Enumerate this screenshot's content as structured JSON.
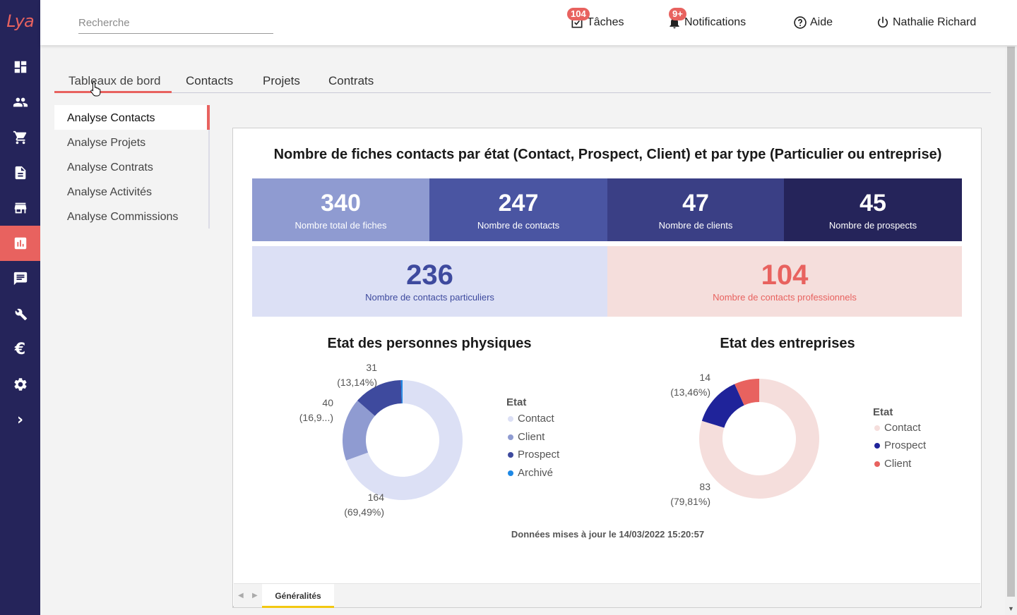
{
  "app": {
    "logo_text": "Lya"
  },
  "sidebar": {
    "items": [
      {
        "name": "dashboard-icon"
      },
      {
        "name": "contacts-icon"
      },
      {
        "name": "cart-icon"
      },
      {
        "name": "document-icon"
      },
      {
        "name": "store-icon"
      },
      {
        "name": "chart-icon",
        "active": true
      },
      {
        "name": "message-icon"
      },
      {
        "name": "tools-icon"
      },
      {
        "name": "euro-icon",
        "glyph": "€"
      },
      {
        "name": "gear-icon"
      },
      {
        "name": "chevron-right-icon",
        "glyph": "›"
      }
    ]
  },
  "header": {
    "search_placeholder": "Recherche",
    "tasks": {
      "label": "Tâches",
      "badge": "104"
    },
    "notifications": {
      "label": "Notifications",
      "badge": "9+"
    },
    "help": {
      "label": "Aide"
    },
    "user": {
      "label": "Nathalie Richard"
    }
  },
  "tabs": [
    {
      "label": "Tableaux de bord",
      "active": true
    },
    {
      "label": "Contacts"
    },
    {
      "label": "Projets"
    },
    {
      "label": "Contrats"
    }
  ],
  "subnav": [
    {
      "label": "Analyse Contacts",
      "active": true
    },
    {
      "label": "Analyse Projets"
    },
    {
      "label": "Analyse Contrats"
    },
    {
      "label": "Analyse Activités"
    },
    {
      "label": "Analyse Commissions"
    }
  ],
  "report": {
    "title": "Nombre de fiches contacts par état (Contact, Prospect, Client) et par type (Particulier ou entreprise)",
    "kpis": [
      {
        "value": "340",
        "label": "Nombre total de fiches"
      },
      {
        "value": "247",
        "label": "Nombre de contacts"
      },
      {
        "value": "47",
        "label": "Nombre de clients"
      },
      {
        "value": "45",
        "label": "Nombre de prospects"
      }
    ],
    "kpis2": [
      {
        "value": "236",
        "label": "Nombre de contacts particuliers"
      },
      {
        "value": "104",
        "label": "Nombre de contacts professionnels"
      }
    ],
    "updated": "Données mises à jour le 14/03/2022 15:20:57",
    "page_tab": "Généralités"
  },
  "colors": {
    "accent": "#e8625f",
    "sidebar": "#25245a",
    "kpi1": "#8f9bd1",
    "kpi2": "#4a55a2",
    "kpi3": "#3a3f85",
    "kpi4": "#25245a",
    "particuliers_bg": "#dce0f5",
    "particuliers_text": "#3e4a9e",
    "pro_bg": "#f5dedc",
    "pro_text": "#e8625f"
  },
  "chart_data": [
    {
      "type": "donut",
      "title": "Etat des personnes physiques",
      "legend_title": "Etat",
      "slices": [
        {
          "name": "Contact",
          "value": 164,
          "label_value": "164",
          "label_pct": "(69,49%)",
          "color": "#dce0f5"
        },
        {
          "name": "Client",
          "value": 40,
          "label_value": "40",
          "label_pct": "(16,9...)",
          "color": "#8f9bd1"
        },
        {
          "name": "Prospect",
          "value": 31,
          "label_value": "31",
          "label_pct": "(13,14%)",
          "color": "#3e4a9e"
        },
        {
          "name": "Archivé",
          "value": 1,
          "color": "#1e88e5"
        }
      ]
    },
    {
      "type": "donut",
      "title": "Etat des entreprises",
      "legend_title": "Etat",
      "slices": [
        {
          "name": "Contact",
          "value": 83,
          "label_value": "83",
          "label_pct": "(79,81%)",
          "color": "#f5dedc"
        },
        {
          "name": "Prospect",
          "value": 14,
          "label_value": "14",
          "label_pct": "(13,46%)",
          "color": "#1f239a"
        },
        {
          "name": "Client",
          "value": 7,
          "color": "#e8625f"
        }
      ]
    }
  ]
}
